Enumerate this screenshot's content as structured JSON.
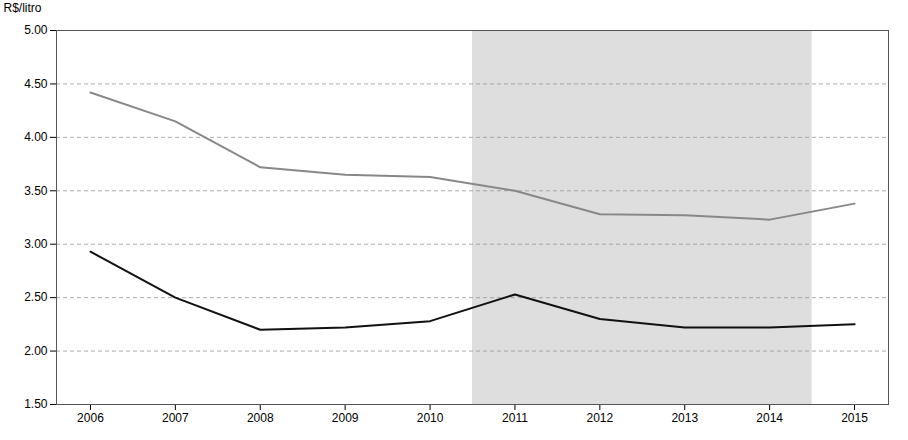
{
  "chart_data": {
    "type": "line",
    "x": [
      2006,
      2007,
      2008,
      2009,
      2010,
      2011,
      2012,
      2013,
      2014,
      2015
    ],
    "series": [
      {
        "color": "#888888",
        "values": [
          4.42,
          4.15,
          3.72,
          3.65,
          3.63,
          3.5,
          3.28,
          3.27,
          3.23,
          3.38
        ]
      },
      {
        "color": "#111111",
        "values": [
          2.93,
          2.5,
          2.2,
          2.22,
          2.28,
          2.53,
          2.3,
          2.22,
          2.22,
          2.25
        ]
      }
    ],
    "ylabel": "R$/litro",
    "xlim": [
      2005.6,
      2015.4
    ],
    "xticks": [
      2006,
      2007,
      2008,
      2009,
      2010,
      2011,
      2012,
      2013,
      2014,
      2015
    ],
    "ylim": [
      1.5,
      5.0
    ],
    "yticks": [
      {
        "value": 1.5,
        "label": "1.50"
      },
      {
        "value": 2,
        "label": "2.00"
      },
      {
        "value": 2.5,
        "label": "2.50"
      },
      {
        "value": 3,
        "label": "3.00"
      },
      {
        "value": 3.5,
        "label": "3.50"
      },
      {
        "value": 4,
        "label": "4.00"
      },
      {
        "value": 4.5,
        "label": "4.50"
      },
      {
        "value": 5,
        "label": "5.00"
      }
    ],
    "grid": true,
    "shaded_span": {
      "x": [
        2010.5,
        2014.5
      ],
      "color": "#dedede"
    }
  }
}
